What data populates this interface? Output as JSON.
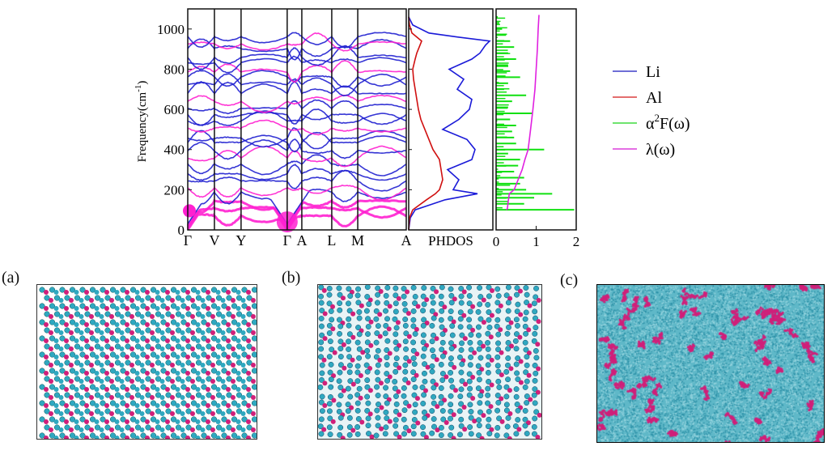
{
  "chart_data": [
    {
      "type": "line",
      "name": "phonon-dispersion",
      "ylabel": "Frequency(cm",
      "ylabel_sup": "-1",
      "ylabel_close": ")",
      "ylim": [
        0,
        1100
      ],
      "yticks": [
        "0",
        "200",
        "400",
        "600",
        "800",
        "1000"
      ],
      "ytick_values": [
        0,
        200,
        400,
        600,
        800,
        1000
      ],
      "kpoints": [
        "Γ",
        "V",
        "Y",
        "Γ",
        "A",
        "L",
        "M",
        "A"
      ],
      "kpoint_positions": [
        0,
        0.122,
        0.244,
        0.455,
        0.522,
        0.659,
        0.778,
        1.0
      ],
      "series_colors": {
        "Li": "#2020d0",
        "Al": "#ff20d0"
      }
    },
    {
      "type": "line",
      "name": "phdos",
      "xlabel": "PHDOS",
      "ylim": [
        0,
        1100
      ],
      "freq": [
        0,
        60,
        100,
        150,
        180,
        200,
        250,
        300,
        350,
        400,
        450,
        500,
        550,
        600,
        650,
        700,
        750,
        800,
        850,
        880,
        920,
        940,
        960,
        980,
        1020,
        1060
      ],
      "series": [
        {
          "name": "Li",
          "color": "#1a1ad8",
          "values": [
            0,
            0.02,
            0.08,
            0.45,
            0.85,
            0.55,
            0.62,
            0.48,
            0.78,
            0.82,
            0.72,
            0.42,
            0.62,
            0.75,
            0.78,
            0.6,
            0.68,
            0.5,
            0.78,
            0.88,
            0.95,
            1.0,
            0.6,
            0.25,
            0.05,
            0
          ]
        },
        {
          "name": "Al",
          "color": "#d01010",
          "values": [
            0,
            0.01,
            0.05,
            0.22,
            0.33,
            0.38,
            0.42,
            0.4,
            0.38,
            0.3,
            0.25,
            0.2,
            0.15,
            0.12,
            0.1,
            0.08,
            0.06,
            0.05,
            0.08,
            0.1,
            0.14,
            0.16,
            0.1,
            0.04,
            0.01,
            0
          ]
        }
      ]
    },
    {
      "type": "line",
      "name": "eliashberg",
      "xlim": [
        0,
        2
      ],
      "xticks": [
        "0",
        "1",
        "2"
      ],
      "xtick_values": [
        0,
        1,
        2
      ],
      "ylim": [
        0,
        1100
      ],
      "a2F": {
        "name": "α²F(ω)",
        "color": "#10e010",
        "freq": [
          100,
          130,
          160,
          180,
          200,
          230,
          260,
          290,
          320,
          350,
          380,
          400,
          430,
          460,
          490,
          520,
          550,
          580,
          610,
          640,
          670,
          700,
          730,
          760,
          790,
          820,
          850,
          880,
          910,
          940,
          970,
          1000,
          1030,
          1060
        ],
        "values": [
          1.95,
          0.7,
          0.95,
          1.4,
          0.75,
          0.6,
          0.7,
          0.45,
          0.55,
          0.6,
          0.3,
          1.2,
          0.5,
          0.45,
          0.4,
          0.5,
          0.35,
          0.9,
          0.3,
          0.4,
          0.75,
          0.2,
          0.3,
          0.6,
          0.35,
          0.3,
          0.5,
          0.3,
          0.45,
          0.35,
          0.25,
          0.15,
          0.08,
          0.04
        ]
      },
      "lambda": {
        "name": "λ(ω)",
        "color": "#e020e0",
        "freq": [
          100,
          105,
          140,
          180,
          200,
          250,
          300,
          350,
          400,
          500,
          600,
          700,
          800,
          900,
          1000,
          1070
        ],
        "values": [
          0.25,
          0.28,
          0.3,
          0.33,
          0.45,
          0.55,
          0.65,
          0.72,
          0.8,
          0.86,
          0.92,
          0.97,
          1.0,
          1.03,
          1.05,
          1.07
        ]
      }
    }
  ],
  "legend": [
    {
      "label": "Li",
      "color": "#5a5ad0"
    },
    {
      "label": "Al",
      "color": "#e05a5a"
    },
    {
      "label": "α",
      "sup": "2",
      "label_rest": "F(ω)",
      "color": "#5ae05a"
    },
    {
      "label": "λ(ω)",
      "color": "#e05ae0"
    }
  ],
  "panels": [
    {
      "label": "(a)"
    },
    {
      "label": "(b)"
    },
    {
      "label": "(c)"
    }
  ],
  "colors": {
    "atom_li": "#2fa8c0",
    "atom_al": "#d0207a"
  }
}
